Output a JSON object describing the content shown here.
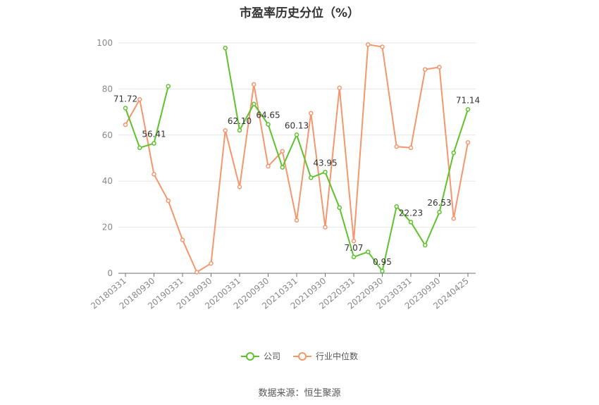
{
  "chart_data": {
    "type": "line",
    "title": "市盈率历史分位（%）",
    "ylim": [
      0,
      100
    ],
    "yticks": [
      0,
      20,
      40,
      60,
      80,
      100
    ],
    "grid": true,
    "legend_position": "bottom",
    "x": [
      "20180331",
      "20180630",
      "20180930",
      "20181231",
      "20190331",
      "20190630",
      "20190930",
      "20191231",
      "20200331",
      "20200630",
      "20200930",
      "20201231",
      "20210331",
      "20210630",
      "20210930",
      "20211231",
      "20220331",
      "20220630",
      "20220930",
      "20221231",
      "20230331",
      "20230630",
      "20230930",
      "20231231",
      "20240425"
    ],
    "xtick_labels": [
      "20180331",
      "20180930",
      "20190331",
      "20190930",
      "20200331",
      "20200930",
      "20210331",
      "20210930",
      "20220331",
      "20220930",
      "20230331",
      "20230930",
      "20240425"
    ],
    "series": [
      {
        "name": "公司",
        "color": "#5ec22d",
        "values": [
          71.72,
          54.5,
          56.41,
          81.2,
          null,
          null,
          null,
          97.8,
          62.1,
          73.5,
          64.65,
          46.0,
          60.13,
          41.5,
          43.95,
          28.5,
          7.07,
          9.3,
          0.95,
          29.0,
          22.23,
          12.2,
          26.53,
          52.3,
          71.14
        ],
        "labels": [
          {
            "index": 0,
            "text": "71.72"
          },
          {
            "index": 2,
            "text": "56.41"
          },
          {
            "index": 8,
            "text": "62.10"
          },
          {
            "index": 10,
            "text": "64.65"
          },
          {
            "index": 12,
            "text": "60.13"
          },
          {
            "index": 14,
            "text": "43.95"
          },
          {
            "index": 16,
            "text": "7.07"
          },
          {
            "index": 18,
            "text": "0.95"
          },
          {
            "index": 20,
            "text": "22.23"
          },
          {
            "index": 22,
            "text": "26.53"
          },
          {
            "index": 24,
            "text": "71.14"
          }
        ]
      },
      {
        "name": "行业中位数",
        "color": "#f5966d",
        "values": [
          64.5,
          75.5,
          43.0,
          31.5,
          14.5,
          0.5,
          4.3,
          62.0,
          37.5,
          82.0,
          46.5,
          53.0,
          23.0,
          69.5,
          20.0,
          80.5,
          14.0,
          99.3,
          98.3,
          55.0,
          54.5,
          88.5,
          89.5,
          23.8,
          56.8
        ]
      }
    ]
  },
  "source_text": "数据来源：恒生聚源"
}
